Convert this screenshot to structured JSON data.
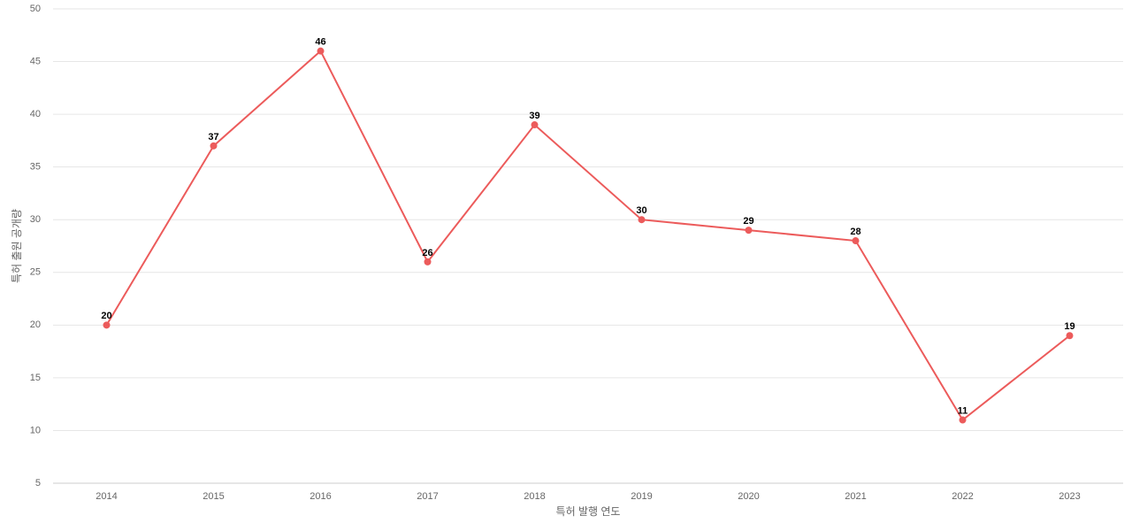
{
  "chart_data": {
    "type": "line",
    "x_label": "특허 발행 연도",
    "y_label": "특허 출원 공개량",
    "categories": [
      "2014",
      "2015",
      "2016",
      "2017",
      "2018",
      "2019",
      "2020",
      "2021",
      "2022",
      "2023"
    ],
    "series": [
      {
        "color": "#ec5b5b",
        "values": [
          20,
          37,
          46,
          26,
          39,
          30,
          29,
          28,
          11,
          19
        ]
      }
    ],
    "ylim": [
      5,
      50
    ],
    "yticks": [
      5,
      10,
      15,
      20,
      25,
      30,
      35,
      40,
      45,
      50
    ],
    "grid": true
  }
}
